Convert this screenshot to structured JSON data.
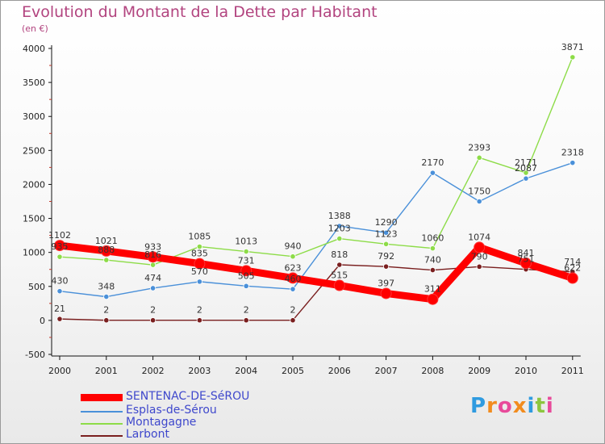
{
  "title": "Evolution du Montant de la Dette par Habitant",
  "subtitle": "(en €)",
  "chart_data": {
    "type": "line",
    "title": "Evolution du Montant de la Dette par Habitant",
    "subtitle": "(en €)",
    "xlabel": "",
    "ylabel": "",
    "categories": [
      "2000",
      "2001",
      "2002",
      "2003",
      "2004",
      "2005",
      "2006",
      "2007",
      "2008",
      "2009",
      "2010",
      "2011"
    ],
    "ylim": [
      -500,
      4000
    ],
    "yticks": [
      -500,
      0,
      500,
      1000,
      1500,
      2000,
      2500,
      3000,
      3500,
      4000
    ],
    "grid": false,
    "legend_position": "bottom-left",
    "series": [
      {
        "name": "SENTENAC-DE-SéROU",
        "color": "#ff0000",
        "values": [
          1102,
          1021,
          933,
          835,
          731,
          623,
          515,
          397,
          311,
          1074,
          841,
          622
        ],
        "labels": [
          "1102",
          "1021",
          "933",
          "835",
          "731",
          "623",
          "515",
          "397",
          "311",
          "1074",
          "841",
          "622"
        ]
      },
      {
        "name": "Esplas-de-Sérou",
        "color": "#4a90d9",
        "values": [
          430,
          348,
          474,
          570,
          505,
          460,
          1388,
          1290,
          2170,
          1750,
          2087,
          2318
        ],
        "labels": [
          "430",
          "348",
          "474",
          "570",
          "505",
          "460",
          "1388",
          "1290",
          "2170",
          "1750",
          "2087",
          "2318"
        ]
      },
      {
        "name": "Montagagne",
        "color": "#8ddc48",
        "values": [
          935,
          888,
          816,
          1085,
          1013,
          940,
          1203,
          1123,
          1060,
          2393,
          2171,
          3871
        ],
        "labels": [
          "935",
          "888",
          "816",
          "1085",
          "1013",
          "940",
          "1203",
          "1123",
          "1060",
          "2393",
          "2171",
          "3871"
        ]
      },
      {
        "name": "Larbont",
        "color": "#7a1f1f",
        "values": [
          21,
          2,
          2,
          2,
          2,
          2,
          818,
          792,
          740,
          790,
          751,
          714
        ],
        "labels": [
          "21",
          "2",
          "2",
          "2",
          "2",
          "2",
          "818",
          "792",
          "740",
          "790",
          "751",
          "714"
        ]
      }
    ]
  },
  "logo": {
    "letters": [
      "P",
      "r",
      "o",
      "x",
      "i",
      "t",
      "i"
    ],
    "colors": [
      "#2f9be0",
      "#f28c1e",
      "#e84a9a",
      "#f28c1e",
      "#2f9be0",
      "#8cc63f",
      "#e84a9a"
    ]
  }
}
